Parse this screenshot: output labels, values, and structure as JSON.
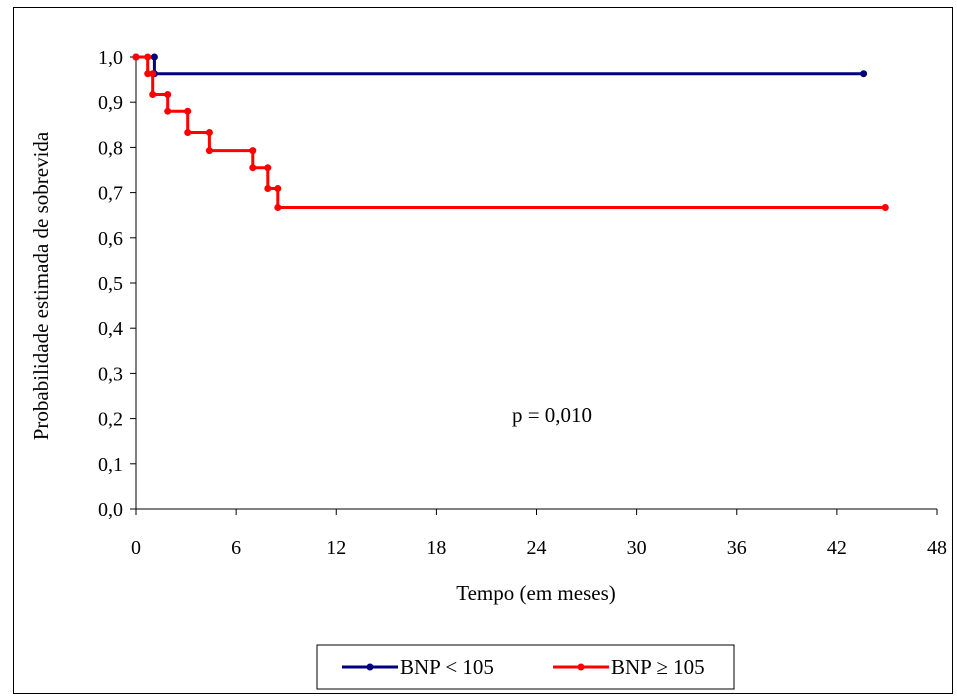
{
  "chart_data": {
    "type": "line",
    "step": true,
    "xlabel": "Tempo (em meses)",
    "ylabel": "Probabilidade estimada de sobrevida",
    "xlim": [
      0,
      48
    ],
    "ylim": [
      0,
      1
    ],
    "xticks": [
      0,
      6,
      12,
      18,
      24,
      30,
      36,
      42,
      48
    ],
    "xtick_labels": [
      "0",
      "6",
      "12",
      "18",
      "24",
      "30",
      "36",
      "42",
      "48"
    ],
    "yticks": [
      0,
      0.1,
      0.2,
      0.3,
      0.4,
      0.5,
      0.6,
      0.7,
      0.8,
      0.9,
      1.0
    ],
    "ytick_labels": [
      "0,0",
      "0,1",
      "0,2",
      "0,3",
      "0,4",
      "0,5",
      "0,6",
      "0,7",
      "0,8",
      "0,9",
      "1,0"
    ],
    "grid": false,
    "legend_position": "bottom",
    "annotation": "p = 0,010",
    "series": [
      {
        "name": "BNP < 105",
        "color": "#000080",
        "points": [
          [
            0,
            1.0
          ],
          [
            1.1,
            1.0
          ],
          [
            1.1,
            0.963
          ],
          [
            43.6,
            0.963
          ]
        ]
      },
      {
        "name": "BNP ≥ 105",
        "color": "#ff0000",
        "points": [
          [
            0,
            1.0
          ],
          [
            0.7,
            1.0
          ],
          [
            0.7,
            0.963
          ],
          [
            1.0,
            0.963
          ],
          [
            1.0,
            0.917
          ],
          [
            1.9,
            0.917
          ],
          [
            1.9,
            0.88
          ],
          [
            3.1,
            0.88
          ],
          [
            3.1,
            0.833
          ],
          [
            4.4,
            0.833
          ],
          [
            4.4,
            0.793
          ],
          [
            7.0,
            0.793
          ],
          [
            7.0,
            0.755
          ],
          [
            7.9,
            0.755
          ],
          [
            7.9,
            0.709
          ],
          [
            8.5,
            0.709
          ],
          [
            8.5,
            0.667
          ],
          [
            44.9,
            0.667
          ]
        ]
      }
    ]
  }
}
